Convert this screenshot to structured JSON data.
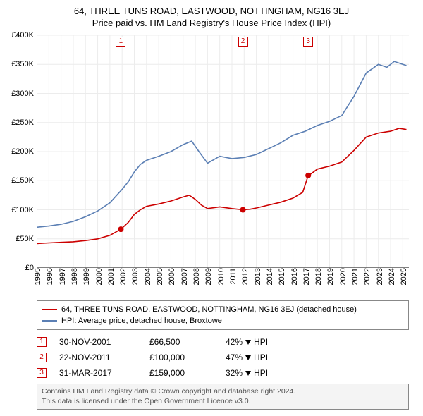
{
  "title": "64, THREE TUNS ROAD, EASTWOOD, NOTTINGHAM, NG16 3EJ",
  "subtitle": "Price paid vs. HM Land Registry's House Price Index (HPI)",
  "chart": {
    "type": "line",
    "background_color": "#ffffff",
    "grid_color": "#ececec",
    "xlim": [
      1995,
      2025.5
    ],
    "ylim": [
      0,
      400000
    ],
    "ytick_step": 50000,
    "ytick_prefix": "£",
    "ytick_suffix": "K",
    "xticks": [
      1995,
      1996,
      1997,
      1998,
      1999,
      2000,
      2001,
      2002,
      2003,
      2004,
      2005,
      2006,
      2007,
      2008,
      2009,
      2010,
      2011,
      2012,
      2013,
      2014,
      2015,
      2016,
      2017,
      2018,
      2019,
      2020,
      2021,
      2022,
      2023,
      2024,
      2025
    ],
    "series": [
      {
        "name": "64, THREE TUNS ROAD, EASTWOOD, NOTTINGHAM, NG16 3EJ (detached house)",
        "color": "#cc0000",
        "line_width": 1.8,
        "x": [
          1995,
          1996,
          1997,
          1998,
          1999,
          2000,
          2001,
          2001.9,
          2002.5,
          2003,
          2003.5,
          2004,
          2005,
          2006,
          2007,
          2007.5,
          2008,
          2008.5,
          2009,
          2010,
          2011,
          2011.9,
          2012.5,
          2013,
          2014,
          2015,
          2016,
          2016.8,
          2017.25,
          2017.5,
          2018,
          2019,
          2020,
          2021,
          2022,
          2023,
          2024,
          2024.7,
          2025.3
        ],
        "y": [
          42000,
          43000,
          44000,
          45000,
          47000,
          50000,
          56000,
          66500,
          78000,
          92000,
          100000,
          106000,
          110000,
          115000,
          122000,
          125000,
          118000,
          108000,
          102000,
          105000,
          102000,
          100000,
          101000,
          103000,
          108000,
          113000,
          120000,
          130000,
          159000,
          162000,
          170000,
          175000,
          182000,
          202000,
          225000,
          232000,
          235000,
          240000,
          238000
        ]
      },
      {
        "name": "HPI: Average price, detached house, Broxtowe",
        "color": "#5b7fb4",
        "line_width": 1.3,
        "x": [
          1995,
          1996,
          1997,
          1998,
          1999,
          2000,
          2001,
          2002,
          2002.5,
          2003,
          2003.5,
          2004,
          2005,
          2006,
          2007,
          2007.7,
          2008.3,
          2009,
          2010,
          2011,
          2012,
          2013,
          2014,
          2015,
          2016,
          2017,
          2018,
          2019,
          2020,
          2021,
          2022,
          2023,
          2023.7,
          2024.3,
          2025,
          2025.3
        ],
        "y": [
          70000,
          72000,
          75000,
          80000,
          88000,
          98000,
          112000,
          135000,
          148000,
          165000,
          178000,
          185000,
          192000,
          200000,
          212000,
          218000,
          200000,
          180000,
          192000,
          188000,
          190000,
          195000,
          205000,
          215000,
          228000,
          235000,
          245000,
          252000,
          262000,
          295000,
          335000,
          350000,
          345000,
          355000,
          350000,
          348000
        ]
      }
    ],
    "markers": [
      {
        "id": "1",
        "x": 2001.9,
        "series": 0,
        "y": 66500
      },
      {
        "id": "2",
        "x": 2011.9,
        "series": 0,
        "y": 100000
      },
      {
        "id": "3",
        "x": 2017.25,
        "series": 0,
        "y": 159000
      }
    ],
    "marker_border_color": "#cc0000",
    "marker_text_color": "#cc0000",
    "label_fontsize": 11,
    "title_fontsize": 13
  },
  "legend": {
    "items": [
      {
        "color": "#cc0000",
        "label": "64, THREE TUNS ROAD, EASTWOOD, NOTTINGHAM, NG16 3EJ (detached house)"
      },
      {
        "color": "#5b7fb4",
        "label": "HPI: Average price, detached house, Broxtowe"
      }
    ]
  },
  "transactions": [
    {
      "id": "1",
      "date": "30-NOV-2001",
      "price": "£66,500",
      "diff_pct": "42%",
      "diff_dir": "down",
      "diff_label": "HPI"
    },
    {
      "id": "2",
      "date": "22-NOV-2011",
      "price": "£100,000",
      "diff_pct": "47%",
      "diff_dir": "down",
      "diff_label": "HPI"
    },
    {
      "id": "3",
      "date": "31-MAR-2017",
      "price": "£159,000",
      "diff_pct": "32%",
      "diff_dir": "down",
      "diff_label": "HPI"
    }
  ],
  "footer": {
    "line1": "Contains HM Land Registry data © Crown copyright and database right 2024.",
    "line2": "This data is licensed under the Open Government Licence v3.0."
  }
}
